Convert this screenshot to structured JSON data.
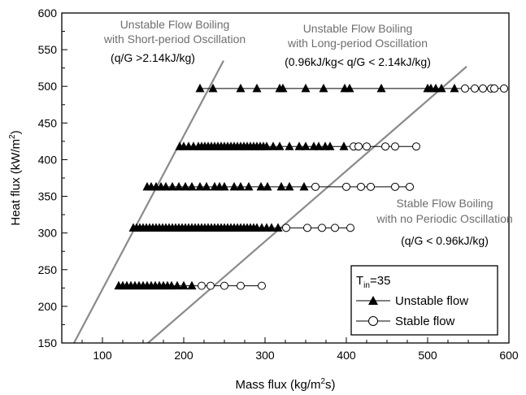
{
  "chart_data": {
    "type": "scatter",
    "xlabel": "Mass flux (kg/m²s)",
    "ylabel": "Heat flux (kW/m²)",
    "xlim": [
      50,
      600
    ],
    "ylim": [
      150,
      600
    ],
    "xticks": [
      100,
      200,
      300,
      400,
      500,
      600
    ],
    "yticks": [
      150,
      200,
      250,
      300,
      350,
      400,
      450,
      500,
      550,
      600
    ],
    "legend": {
      "title_main": "T",
      "title_sub": "in",
      "title_value": "=35",
      "position": "lower-right",
      "entries": [
        "Unstable flow",
        "Stable flow"
      ]
    },
    "annotations": [
      {
        "lines": [
          "Unstable Flow Boiling",
          "with Short-period Oscillation"
        ],
        "sub": "(q/G >2.14kJ/kg)"
      },
      {
        "lines": [
          "Unstable Flow Boiling",
          "with Long-period Oscillation"
        ],
        "sub": "(0.96kJ/kg< q/G < 2.14kJ/kg)"
      },
      {
        "lines": [
          "Stable Flow Boiling",
          "with no Periodic Oscillation"
        ],
        "sub": "(q/G < 0.96kJ/kg)"
      }
    ],
    "boundary_lines": [
      {
        "name": "q/G = 2.14kJ/kg",
        "points": [
          [
            65,
            150
          ],
          [
            249,
            535
          ]
        ]
      },
      {
        "name": "q/G = 0.96kJ/kg",
        "points": [
          [
            156,
            150
          ],
          [
            548,
            527
          ]
        ]
      }
    ],
    "series": [
      {
        "name": "Unstable flow",
        "marker": "filled-triangle",
        "points": [
          [
            120,
            228
          ],
          [
            125,
            228
          ],
          [
            130,
            228
          ],
          [
            135,
            228
          ],
          [
            140,
            228
          ],
          [
            145,
            228
          ],
          [
            150,
            228
          ],
          [
            155,
            228
          ],
          [
            160,
            228
          ],
          [
            165,
            228
          ],
          [
            170,
            228
          ],
          [
            175,
            228
          ],
          [
            180,
            228
          ],
          [
            185,
            228
          ],
          [
            192,
            228
          ],
          [
            200,
            228
          ],
          [
            210,
            228
          ],
          [
            138,
            307
          ],
          [
            142,
            307
          ],
          [
            146,
            307
          ],
          [
            150,
            307
          ],
          [
            154,
            307
          ],
          [
            158,
            307
          ],
          [
            162,
            307
          ],
          [
            166,
            307
          ],
          [
            170,
            307
          ],
          [
            174,
            307
          ],
          [
            178,
            307
          ],
          [
            182,
            307
          ],
          [
            186,
            307
          ],
          [
            190,
            307
          ],
          [
            194,
            307
          ],
          [
            198,
            307
          ],
          [
            202,
            307
          ],
          [
            206,
            307
          ],
          [
            210,
            307
          ],
          [
            214,
            307
          ],
          [
            218,
            307
          ],
          [
            222,
            307
          ],
          [
            226,
            307
          ],
          [
            230,
            307
          ],
          [
            234,
            307
          ],
          [
            238,
            307
          ],
          [
            242,
            307
          ],
          [
            246,
            307
          ],
          [
            250,
            307
          ],
          [
            254,
            307
          ],
          [
            258,
            307
          ],
          [
            262,
            307
          ],
          [
            266,
            307
          ],
          [
            270,
            307
          ],
          [
            274,
            307
          ],
          [
            278,
            307
          ],
          [
            282,
            307
          ],
          [
            286,
            307
          ],
          [
            290,
            307
          ],
          [
            296,
            307
          ],
          [
            302,
            307
          ],
          [
            308,
            307
          ],
          [
            316,
            307
          ],
          [
            155,
            363
          ],
          [
            160,
            363
          ],
          [
            166,
            363
          ],
          [
            172,
            363
          ],
          [
            178,
            363
          ],
          [
            186,
            363
          ],
          [
            194,
            363
          ],
          [
            202,
            363
          ],
          [
            210,
            363
          ],
          [
            220,
            363
          ],
          [
            228,
            363
          ],
          [
            238,
            363
          ],
          [
            244,
            363
          ],
          [
            250,
            363
          ],
          [
            262,
            363
          ],
          [
            270,
            363
          ],
          [
            280,
            363
          ],
          [
            295,
            363
          ],
          [
            303,
            363
          ],
          [
            320,
            363
          ],
          [
            330,
            363
          ],
          [
            348,
            363
          ],
          [
            195,
            418
          ],
          [
            200,
            418
          ],
          [
            206,
            418
          ],
          [
            212,
            418
          ],
          [
            218,
            418
          ],
          [
            222,
            418
          ],
          [
            226,
            418
          ],
          [
            230,
            418
          ],
          [
            234,
            418
          ],
          [
            238,
            418
          ],
          [
            242,
            418
          ],
          [
            246,
            418
          ],
          [
            250,
            418
          ],
          [
            254,
            418
          ],
          [
            258,
            418
          ],
          [
            262,
            418
          ],
          [
            266,
            418
          ],
          [
            270,
            418
          ],
          [
            274,
            418
          ],
          [
            278,
            418
          ],
          [
            282,
            418
          ],
          [
            286,
            418
          ],
          [
            290,
            418
          ],
          [
            294,
            418
          ],
          [
            298,
            418
          ],
          [
            302,
            418
          ],
          [
            310,
            418
          ],
          [
            318,
            418
          ],
          [
            330,
            418
          ],
          [
            342,
            418
          ],
          [
            350,
            418
          ],
          [
            360,
            418
          ],
          [
            366,
            418
          ],
          [
            374,
            418
          ],
          [
            380,
            418
          ],
          [
            397,
            418
          ],
          [
            220,
            497
          ],
          [
            236,
            497
          ],
          [
            270,
            497
          ],
          [
            290,
            497
          ],
          [
            318,
            497
          ],
          [
            322,
            497
          ],
          [
            350,
            497
          ],
          [
            372,
            497
          ],
          [
            398,
            497
          ],
          [
            404,
            497
          ],
          [
            443,
            497
          ],
          [
            500,
            497
          ],
          [
            504,
            497
          ],
          [
            510,
            497
          ],
          [
            517,
            497
          ],
          [
            533,
            497
          ]
        ]
      },
      {
        "name": "Stable flow",
        "marker": "open-circle",
        "points": [
          [
            222,
            228
          ],
          [
            233,
            228
          ],
          [
            250,
            228
          ],
          [
            270,
            228
          ],
          [
            296,
            228
          ],
          [
            326,
            307
          ],
          [
            352,
            307
          ],
          [
            370,
            307
          ],
          [
            386,
            307
          ],
          [
            405,
            307
          ],
          [
            362,
            363
          ],
          [
            400,
            363
          ],
          [
            418,
            363
          ],
          [
            430,
            363
          ],
          [
            460,
            363
          ],
          [
            478,
            363
          ],
          [
            409,
            418
          ],
          [
            415,
            418
          ],
          [
            425,
            418
          ],
          [
            448,
            418
          ],
          [
            460,
            418
          ],
          [
            486,
            418
          ],
          [
            546,
            497
          ],
          [
            558,
            497
          ],
          [
            568,
            497
          ],
          [
            578,
            497
          ],
          [
            582,
            497
          ],
          [
            594,
            497
          ]
        ]
      }
    ]
  }
}
